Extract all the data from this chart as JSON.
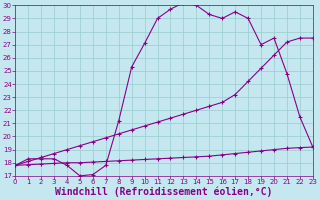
{
  "background_color": "#c5e8f0",
  "line_color": "#880088",
  "grid_color": "#99cccc",
  "xlabel": "Windchill (Refroidissement éolien,°C)",
  "xlim": [
    0,
    23
  ],
  "ylim": [
    17,
    30
  ],
  "xticks": [
    0,
    1,
    2,
    3,
    4,
    5,
    6,
    7,
    8,
    9,
    10,
    11,
    12,
    13,
    14,
    15,
    16,
    17,
    18,
    19,
    20,
    21,
    22,
    23
  ],
  "yticks": [
    17,
    18,
    19,
    20,
    21,
    22,
    23,
    24,
    25,
    26,
    27,
    28,
    29,
    30
  ],
  "curve1_x": [
    0,
    1,
    2,
    3,
    4,
    5,
    6,
    7,
    8,
    9,
    10,
    11,
    12,
    13,
    14,
    15,
    16,
    17,
    18,
    19,
    20,
    21,
    22,
    23
  ],
  "curve1_y": [
    17.8,
    18.3,
    18.3,
    18.3,
    17.8,
    17.0,
    17.1,
    17.8,
    21.2,
    25.3,
    27.1,
    29.0,
    29.7,
    30.2,
    30.0,
    29.3,
    29.0,
    29.5,
    29.0,
    27.0,
    27.5,
    24.8,
    21.5,
    19.2
  ],
  "curve2_x": [
    0,
    1,
    2,
    3,
    4,
    5,
    6,
    7,
    8,
    9,
    10,
    11,
    12,
    13,
    14,
    15,
    16,
    17,
    18,
    19,
    20,
    21,
    22,
    23
  ],
  "curve2_y": [
    17.8,
    18.1,
    18.4,
    18.7,
    19.0,
    19.3,
    19.6,
    19.9,
    20.2,
    20.5,
    20.8,
    21.1,
    21.4,
    21.7,
    22.0,
    22.3,
    22.6,
    23.2,
    24.2,
    25.2,
    26.2,
    27.2,
    27.5,
    27.5
  ],
  "curve3_x": [
    0,
    1,
    2,
    3,
    4,
    5,
    6,
    7,
    8,
    9,
    10,
    11,
    12,
    13,
    14,
    15,
    16,
    17,
    18,
    19,
    20,
    21,
    22,
    23
  ],
  "curve3_y": [
    17.8,
    17.85,
    17.9,
    17.95,
    18.0,
    18.0,
    18.05,
    18.1,
    18.15,
    18.2,
    18.25,
    18.3,
    18.35,
    18.4,
    18.45,
    18.5,
    18.6,
    18.7,
    18.8,
    18.9,
    19.0,
    19.1,
    19.15,
    19.2
  ],
  "tick_fontsize": 5,
  "xlabel_fontsize": 7,
  "lw": 0.8,
  "ms": 2.5,
  "mew": 0.8
}
